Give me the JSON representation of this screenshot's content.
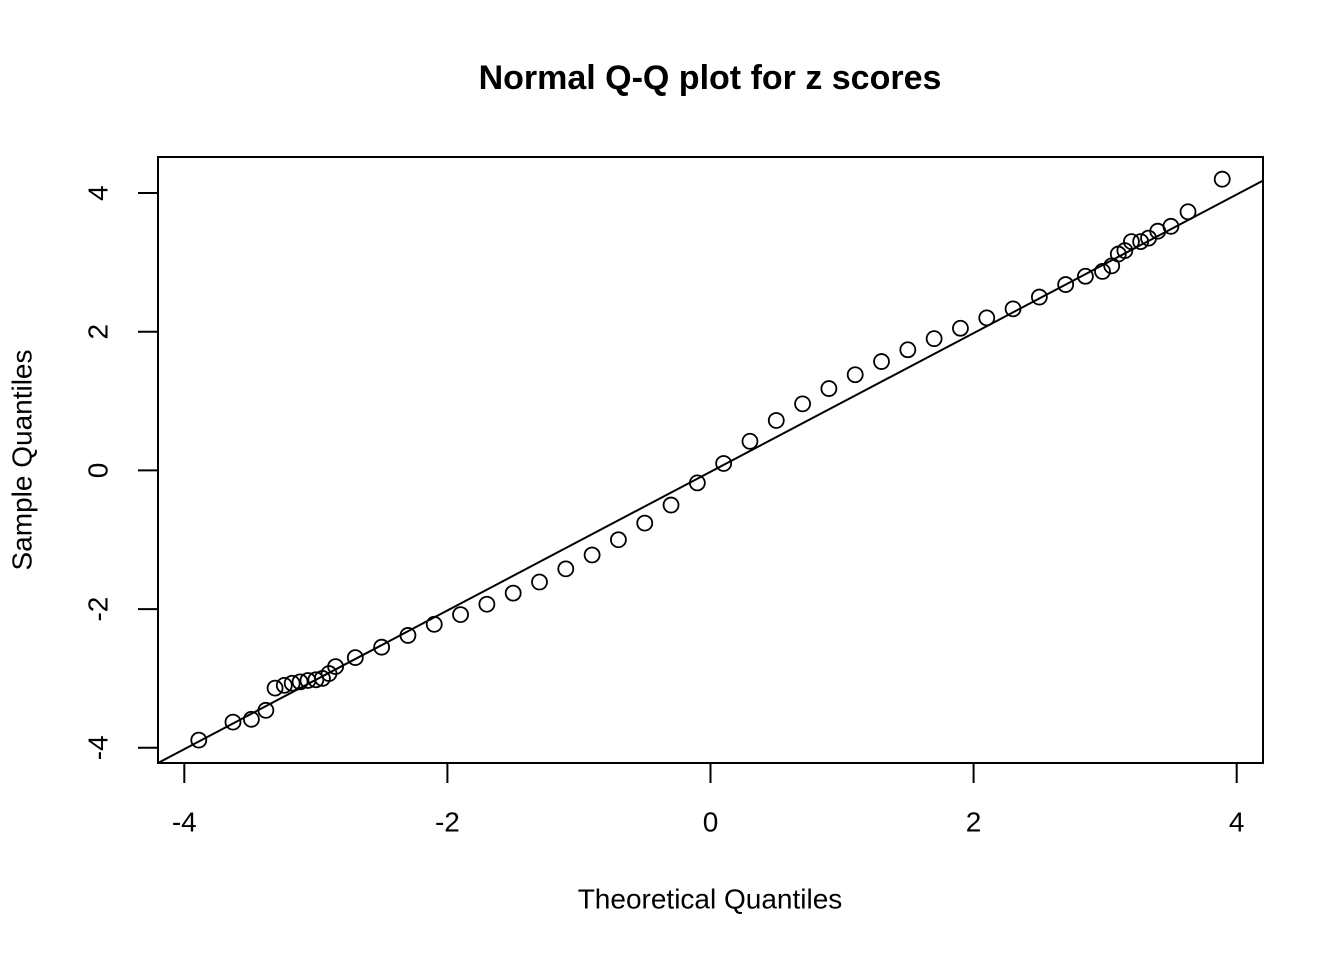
{
  "chart_data": {
    "type": "scatter",
    "title": "Normal Q-Q plot for z scores",
    "x_label": "Theoretical Quantiles",
    "y_label": "Sample Quantiles",
    "xlim": [
      -4.2,
      4.2
    ],
    "ylim": [
      -4.22,
      4.52
    ],
    "xticks": [
      -4,
      -2,
      0,
      2,
      4
    ],
    "yticks": [
      -4,
      -2,
      0,
      2,
      4
    ],
    "grid": false,
    "series": [
      {
        "color": "#000000",
        "x": [
          -3.89,
          -3.63,
          -3.49,
          -3.38,
          -3.31,
          -3.24,
          -3.18,
          -3.12,
          -3.06,
          -3.0,
          -2.95,
          -2.9,
          -2.85,
          -2.7,
          -2.5,
          -2.3,
          -2.1,
          -1.9,
          -1.7,
          -1.5,
          -1.3,
          -1.1,
          -0.9,
          -0.7,
          -0.5,
          -0.3,
          -0.1,
          0.1,
          0.3,
          0.5,
          0.7,
          0.9,
          1.1,
          1.3,
          1.5,
          1.7,
          1.9,
          2.1,
          2.3,
          2.5,
          2.7,
          2.85,
          2.98,
          3.05,
          3.1,
          3.15,
          3.2,
          3.27,
          3.33,
          3.4,
          3.5,
          3.63,
          3.89
        ],
        "values": [
          -3.89,
          -3.63,
          -3.59,
          -3.46,
          -3.14,
          -3.1,
          -3.07,
          -3.05,
          -3.03,
          -3.02,
          -3.0,
          -2.93,
          -2.83,
          -2.7,
          -2.55,
          -2.38,
          -2.22,
          -2.08,
          -1.93,
          -1.77,
          -1.61,
          -1.42,
          -1.22,
          -1.0,
          -0.76,
          -0.5,
          -0.18,
          0.1,
          0.42,
          0.72,
          0.96,
          1.18,
          1.38,
          1.57,
          1.74,
          1.9,
          2.05,
          2.2,
          2.33,
          2.5,
          2.68,
          2.8,
          2.87,
          2.95,
          3.12,
          3.17,
          3.3,
          3.3,
          3.35,
          3.45,
          3.52,
          3.73,
          4.2
        ]
      }
    ],
    "reference_line": {
      "x": [
        -4.2,
        4.2
      ],
      "values": [
        -4.22,
        4.18
      ]
    }
  }
}
